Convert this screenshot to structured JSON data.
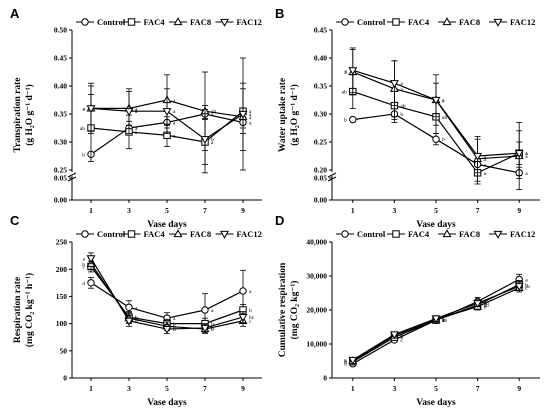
{
  "chart_data": [
    {
      "panel": "A",
      "type": "line",
      "xlabel": "Vase days",
      "ylabel": "Transpiration rate",
      "ylabel_unit": "(g H₂O g⁻¹ d⁻¹)",
      "x": [
        1,
        3,
        5,
        7,
        9
      ],
      "ylim": [
        0,
        0.5
      ],
      "axis_break": [
        0.05,
        0.25
      ],
      "yticks": [
        "0.00",
        "0.05",
        "0.25",
        "0.30",
        "0.35",
        "0.40",
        "0.45",
        "0.50"
      ],
      "legend": [
        "Control",
        "FAC4",
        "FAC8",
        "FAC12"
      ],
      "series": [
        {
          "name": "Control",
          "marker": "circle",
          "values": [
            0.278,
            0.325,
            0.335,
            0.35,
            0.335
          ],
          "err": [
            0,
            0.012,
            0.01,
            0.008,
            0.01
          ],
          "letters": [
            "b",
            "a",
            "a",
            "a",
            "a"
          ]
        },
        {
          "name": "FAC4",
          "marker": "square",
          "values": [
            0.325,
            0.318,
            0.312,
            0.3,
            0.355
          ],
          "err": [
            0.06,
            0.03,
            0.02,
            0.04,
            0.04
          ],
          "letters": [
            "ab",
            "a",
            "a",
            "a",
            "a"
          ]
        },
        {
          "name": "FAC8",
          "marker": "triangle-up",
          "values": [
            0.36,
            0.36,
            0.375,
            0.355,
            0.345
          ],
          "err": [
            0.04,
            0.03,
            0.045,
            0.07,
            0.06
          ],
          "letters": [
            "a",
            "a",
            "a",
            "ab",
            "a"
          ]
        },
        {
          "name": "FAC12",
          "marker": "triangle-down",
          "values": [
            0.36,
            0.355,
            0.355,
            0.305,
            0.35
          ],
          "err": [
            0.045,
            0.04,
            0.04,
            0.06,
            0.1
          ],
          "letters": [
            "a",
            "a",
            "a",
            "b",
            "a"
          ]
        }
      ]
    },
    {
      "panel": "B",
      "type": "line",
      "xlabel": "Vase days",
      "ylabel": "Water uptake rate",
      "ylabel_unit": "(g H₂O g⁻¹ d⁻¹)",
      "x": [
        1,
        3,
        5,
        7,
        9
      ],
      "ylim": [
        0,
        0.45
      ],
      "axis_break": [
        0.05,
        0.2
      ],
      "yticks": [
        "0.00",
        "0.05",
        "0.20",
        "0.25",
        "0.30",
        "0.35",
        "0.40",
        "0.45"
      ],
      "legend": [
        "Control",
        "FAC4",
        "FAC8",
        "FAC12"
      ],
      "series": [
        {
          "name": "Control",
          "marker": "circle",
          "values": [
            0.29,
            0.3,
            0.255,
            0.21,
            0.195
          ],
          "err": [
            0,
            0.01,
            0.01,
            0.01,
            0.01
          ],
          "letters": [
            "b",
            "b",
            "b",
            "a",
            "a"
          ]
        },
        {
          "name": "FAC4",
          "marker": "square",
          "values": [
            0.34,
            0.315,
            0.295,
            0.195,
            0.23
          ],
          "err": [
            0.03,
            0.03,
            0.03,
            0.02,
            0.02
          ],
          "letters": [
            "ab",
            "ab",
            "ab",
            "a",
            "a"
          ]
        },
        {
          "name": "FAC8",
          "marker": "triangle-up",
          "values": [
            0.375,
            0.345,
            0.325,
            0.22,
            0.225
          ],
          "err": [
            0.04,
            0.05,
            0.045,
            0.04,
            0.06
          ],
          "letters": [
            "a",
            "a",
            "a",
            "a",
            "a"
          ]
        },
        {
          "name": "FAC12",
          "marker": "triangle-down",
          "values": [
            0.378,
            0.355,
            0.325,
            0.225,
            0.23
          ],
          "err": [
            0.04,
            0.04,
            0.03,
            0.03,
            0.04
          ],
          "letters": [
            "a",
            "a",
            "a",
            "a",
            "a"
          ]
        }
      ]
    },
    {
      "panel": "C",
      "type": "line",
      "xlabel": "Vase days",
      "ylabel": "Respiration rate",
      "ylabel_unit": "(mg CO₂ kg⁻¹ h⁻¹)",
      "x": [
        1,
        3,
        5,
        7,
        9
      ],
      "ylim": [
        0,
        250
      ],
      "yticks": [
        "0",
        "50",
        "100",
        "150",
        "200",
        "250"
      ],
      "legend": [
        "Control",
        "FAC4",
        "FAC8",
        "FAC12"
      ],
      "series": [
        {
          "name": "Control",
          "marker": "circle",
          "values": [
            175,
            130,
            110,
            125,
            160
          ],
          "err": [
            10,
            12,
            10,
            30,
            38
          ],
          "letters": [
            "d",
            "a",
            "a",
            "a",
            "a"
          ]
        },
        {
          "name": "FAC4",
          "marker": "square",
          "values": [
            205,
            112,
            100,
            100,
            125
          ],
          "err": [
            10,
            10,
            8,
            10,
            10
          ],
          "letters": [
            "c",
            "b",
            "b",
            "b",
            "b"
          ]
        },
        {
          "name": "FAC8",
          "marker": "triangle-up",
          "values": [
            210,
            110,
            95,
            90,
            105
          ],
          "err": [
            10,
            10,
            8,
            8,
            10
          ],
          "letters": [
            "b",
            "b",
            "b",
            "b",
            "c"
          ]
        },
        {
          "name": "FAC12",
          "marker": "triangle-down",
          "values": [
            220,
            105,
            90,
            92,
            112
          ],
          "err": [
            10,
            10,
            8,
            8,
            10
          ],
          "letters": [
            "a",
            "b",
            "b",
            "b",
            "bc"
          ]
        }
      ]
    },
    {
      "panel": "D",
      "type": "line",
      "xlabel": "Vase days",
      "ylabel": "Cumulative respiration",
      "ylabel_unit": "(mg CO₂ kg⁻¹)",
      "x": [
        1,
        3,
        5,
        7,
        9
      ],
      "ylim": [
        0,
        40000
      ],
      "yticks": [
        "0",
        "10,000",
        "20,000",
        "30,000",
        "40,000"
      ],
      "legend": [
        "Control",
        "FAC4",
        "FAC8",
        "FAC12"
      ],
      "series": [
        {
          "name": "Control",
          "marker": "circle",
          "values": [
            4200,
            11200,
            17000,
            22500,
            29000
          ],
          "err": [
            300,
            600,
            800,
            1200,
            1500
          ],
          "letters": [
            "d",
            "c",
            "a",
            "a",
            "a"
          ]
        },
        {
          "name": "FAC4",
          "marker": "square",
          "values": [
            4800,
            12000,
            17000,
            21500,
            27500
          ],
          "err": [
            300,
            600,
            800,
            1000,
            1200
          ],
          "letters": [
            "c",
            "b",
            "ab",
            "ab",
            "b"
          ]
        },
        {
          "name": "FAC8",
          "marker": "triangle-up",
          "values": [
            5000,
            12500,
            17200,
            21000,
            26500
          ],
          "err": [
            300,
            600,
            800,
            1000,
            1200
          ],
          "letters": [
            "b",
            "a",
            "b",
            "b",
            "c"
          ]
        },
        {
          "name": "FAC12",
          "marker": "triangle-down",
          "values": [
            5300,
            12800,
            17500,
            22000,
            27000
          ],
          "err": [
            300,
            600,
            800,
            1000,
            1200
          ],
          "letters": [
            "a",
            "a",
            "a",
            "ab",
            "bc"
          ]
        }
      ]
    }
  ]
}
